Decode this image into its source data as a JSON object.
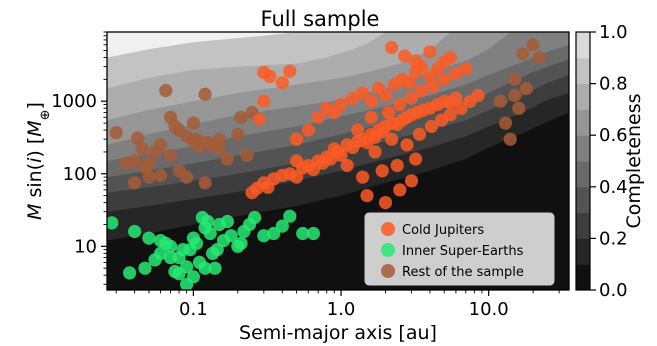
{
  "chart_data": {
    "type": "scatter",
    "title": "Full sample",
    "xlabel": "Semi-major axis [au]",
    "ylabel": "M sin(i) [M⊕]",
    "xscale": "log",
    "yscale": "log",
    "xlim": [
      0.026,
      35
    ],
    "ylim": [
      2.5,
      9000
    ],
    "xticks": [
      {
        "value": 0.1,
        "label": "0.1"
      },
      {
        "value": 1.0,
        "label": "1.0"
      },
      {
        "value": 10.0,
        "label": "10.0"
      }
    ],
    "yticks": [
      {
        "value": 10,
        "label": "10"
      },
      {
        "value": 100,
        "label": "100"
      },
      {
        "value": 1000,
        "label": "1000"
      }
    ],
    "legend": {
      "position": "lower-right",
      "entries": [
        "Cold Jupiters",
        "Inner Super-Earths",
        "Rest of the sample"
      ]
    },
    "colorbar": {
      "label": "Completeness",
      "ticks": [
        "0.0",
        "0.2",
        "0.4",
        "0.6",
        "0.8",
        "1.0"
      ],
      "levels": [
        0.0,
        0.1,
        0.2,
        0.3,
        0.4,
        0.5,
        0.6,
        0.7,
        0.8,
        0.9,
        1.0
      ]
    },
    "completeness_contours": [
      {
        "level": 0.9,
        "points": [
          [
            0.026,
            4000
          ],
          [
            0.05,
            5200
          ],
          [
            0.1,
            6500
          ],
          [
            0.3,
            8000
          ],
          [
            0.5,
            9000
          ]
        ]
      },
      {
        "level": 0.8,
        "points": [
          [
            0.026,
            1500
          ],
          [
            0.05,
            2100
          ],
          [
            0.1,
            2700
          ],
          [
            0.2,
            3000
          ],
          [
            0.5,
            3300
          ],
          [
            0.8,
            4000
          ],
          [
            1.2,
            5200
          ],
          [
            1.5,
            6200
          ],
          [
            2.0,
            9000
          ]
        ]
      },
      {
        "level": 0.7,
        "points": [
          [
            0.026,
            550
          ],
          [
            0.05,
            760
          ],
          [
            0.1,
            1000
          ],
          [
            0.2,
            1300
          ],
          [
            0.5,
            1700
          ],
          [
            1.0,
            2100
          ],
          [
            1.5,
            2500
          ],
          [
            2.5,
            3300
          ],
          [
            4,
            5000
          ],
          [
            5.5,
            9000
          ]
        ]
      },
      {
        "level": 0.6,
        "points": [
          [
            0.026,
            250
          ],
          [
            0.05,
            350
          ],
          [
            0.1,
            480
          ],
          [
            0.2,
            650
          ],
          [
            0.5,
            850
          ],
          [
            1.0,
            1050
          ],
          [
            2,
            1500
          ],
          [
            4,
            2500
          ],
          [
            7,
            3600
          ],
          [
            10,
            5200
          ],
          [
            14,
            9000
          ]
        ]
      },
      {
        "level": 0.5,
        "points": [
          [
            0.026,
            150
          ],
          [
            0.05,
            190
          ],
          [
            0.1,
            240
          ],
          [
            0.2,
            330
          ],
          [
            0.5,
            450
          ],
          [
            1.0,
            620
          ],
          [
            2,
            850
          ],
          [
            4,
            1200
          ],
          [
            7,
            1700
          ],
          [
            10,
            2300
          ],
          [
            17,
            3500
          ],
          [
            25,
            4800
          ],
          [
            35,
            6000
          ]
        ]
      },
      {
        "level": 0.4,
        "points": [
          [
            0.026,
            90
          ],
          [
            0.05,
            110
          ],
          [
            0.1,
            140
          ],
          [
            0.2,
            180
          ],
          [
            0.5,
            250
          ],
          [
            1.0,
            350
          ],
          [
            2,
            500
          ],
          [
            4,
            700
          ],
          [
            7,
            950
          ],
          [
            10,
            1300
          ],
          [
            17,
            2200
          ],
          [
            25,
            3000
          ],
          [
            35,
            3800
          ]
        ]
      },
      {
        "level": 0.3,
        "points": [
          [
            0.026,
            55
          ],
          [
            0.05,
            65
          ],
          [
            0.1,
            80
          ],
          [
            0.2,
            100
          ],
          [
            0.5,
            140
          ],
          [
            1.0,
            200
          ],
          [
            2,
            280
          ],
          [
            4,
            400
          ],
          [
            7,
            550
          ],
          [
            10,
            750
          ],
          [
            17,
            1200
          ],
          [
            25,
            1800
          ],
          [
            35,
            2300
          ]
        ]
      },
      {
        "level": 0.2,
        "points": [
          [
            0.026,
            30
          ],
          [
            0.05,
            36
          ],
          [
            0.1,
            45
          ],
          [
            0.2,
            56
          ],
          [
            0.5,
            80
          ],
          [
            1.0,
            110
          ],
          [
            2,
            160
          ],
          [
            4,
            230
          ],
          [
            7,
            330
          ],
          [
            10,
            450
          ],
          [
            17,
            700
          ],
          [
            25,
            1050
          ],
          [
            35,
            1300
          ]
        ]
      },
      {
        "level": 0.1,
        "points": [
          [
            0.026,
            12
          ],
          [
            0.05,
            15
          ],
          [
            0.1,
            20
          ],
          [
            0.2,
            26
          ],
          [
            0.5,
            36
          ],
          [
            1.0,
            50
          ],
          [
            2,
            75
          ],
          [
            4,
            110
          ],
          [
            7,
            160
          ],
          [
            10,
            230
          ],
          [
            17,
            360
          ],
          [
            25,
            520
          ],
          [
            35,
            700
          ]
        ]
      }
    ],
    "series": [
      {
        "name": "Cold Jupiters",
        "color": "#fc5a24",
        "points": [
          [
            0.25,
            55
          ],
          [
            0.27,
            63
          ],
          [
            0.3,
            75
          ],
          [
            0.32,
            65
          ],
          [
            0.35,
            85
          ],
          [
            0.4,
            95
          ],
          [
            0.45,
            100
          ],
          [
            0.5,
            90
          ],
          [
            0.55,
            120
          ],
          [
            0.6,
            130
          ],
          [
            0.65,
            115
          ],
          [
            0.7,
            150
          ],
          [
            0.75,
            140
          ],
          [
            0.8,
            170
          ],
          [
            0.85,
            160
          ],
          [
            0.9,
            220
          ],
          [
            0.95,
            200
          ],
          [
            1.0,
            180
          ],
          [
            1.1,
            250
          ],
          [
            1.2,
            230
          ],
          [
            1.3,
            280
          ],
          [
            1.4,
            300
          ],
          [
            1.5,
            270
          ],
          [
            1.6,
            350
          ],
          [
            1.7,
            320
          ],
          [
            1.8,
            400
          ],
          [
            1.9,
            380
          ],
          [
            2.0,
            450
          ],
          [
            2.2,
            500
          ],
          [
            2.4,
            480
          ],
          [
            2.6,
            550
          ],
          [
            2.8,
            600
          ],
          [
            3.0,
            650
          ],
          [
            3.3,
            700
          ],
          [
            3.6,
            750
          ],
          [
            4.0,
            800
          ],
          [
            4.5,
            900
          ],
          [
            5.0,
            1000
          ],
          [
            5.5,
            950
          ],
          [
            6.0,
            1100
          ],
          [
            0.5,
            300
          ],
          [
            0.6,
            400
          ],
          [
            0.7,
            600
          ],
          [
            0.8,
            800
          ],
          [
            0.9,
            700
          ],
          [
            1.0,
            900
          ],
          [
            1.2,
            1100
          ],
          [
            1.4,
            1300
          ],
          [
            1.6,
            1000
          ],
          [
            1.8,
            1500
          ],
          [
            2.0,
            1200
          ],
          [
            2.3,
            1700
          ],
          [
            2.6,
            2000
          ],
          [
            2.9,
            1800
          ],
          [
            3.2,
            2500
          ],
          [
            3.5,
            3000
          ],
          [
            4.0,
            2200
          ],
          [
            4.5,
            2800
          ],
          [
            5.0,
            3500
          ],
          [
            5.5,
            4000
          ],
          [
            0.3,
            2500
          ],
          [
            0.33,
            2200
          ],
          [
            0.4,
            1800
          ],
          [
            0.45,
            2600
          ],
          [
            0.3,
            1000
          ],
          [
            0.28,
            560
          ],
          [
            0.5,
            150
          ],
          [
            1.1,
            130
          ],
          [
            1.5,
            50
          ],
          [
            2.0,
            40
          ],
          [
            2.5,
            60
          ],
          [
            3.0,
            80
          ],
          [
            1.3,
            400
          ],
          [
            1.6,
            600
          ],
          [
            2.1,
            700
          ],
          [
            2.5,
            900
          ],
          [
            3.0,
            1100
          ],
          [
            3.5,
            1400
          ],
          [
            4.2,
            1600
          ],
          [
            5.0,
            2000
          ],
          [
            6.0,
            2400
          ],
          [
            7.0,
            2800
          ],
          [
            2.2,
            5500
          ],
          [
            2.7,
            4200
          ],
          [
            3.2,
            3600
          ],
          [
            4.0,
            4800
          ],
          [
            1.7,
            200
          ],
          [
            2.2,
            300
          ],
          [
            2.8,
            250
          ],
          [
            3.4,
            350
          ],
          [
            4.1,
            450
          ],
          [
            4.8,
            550
          ],
          [
            5.5,
            650
          ],
          [
            6.5,
            800
          ],
          [
            7.5,
            1000
          ],
          [
            8.5,
            1200
          ],
          [
            1.4,
            90
          ],
          [
            1.9,
            110
          ],
          [
            2.4,
            130
          ],
          [
            3.2,
            160
          ]
        ]
      },
      {
        "name": "Inner Super-Earths",
        "color": "#26ea74",
        "points": [
          [
            0.028,
            21
          ],
          [
            0.037,
            4.3
          ],
          [
            0.04,
            16
          ],
          [
            0.047,
            5.0
          ],
          [
            0.05,
            13
          ],
          [
            0.055,
            6.5
          ],
          [
            0.06,
            8
          ],
          [
            0.065,
            11
          ],
          [
            0.07,
            10
          ],
          [
            0.075,
            4.5
          ],
          [
            0.08,
            7
          ],
          [
            0.085,
            9
          ],
          [
            0.09,
            3.0
          ],
          [
            0.09,
            5.2
          ],
          [
            0.1,
            13
          ],
          [
            0.105,
            11
          ],
          [
            0.11,
            6
          ],
          [
            0.12,
            18
          ],
          [
            0.125,
            22
          ],
          [
            0.13,
            15
          ],
          [
            0.135,
            8
          ],
          [
            0.14,
            5
          ],
          [
            0.15,
            20
          ],
          [
            0.16,
            12
          ],
          [
            0.18,
            14
          ],
          [
            0.2,
            10
          ],
          [
            0.22,
            16
          ],
          [
            0.24,
            20
          ],
          [
            0.26,
            25
          ],
          [
            0.3,
            14
          ],
          [
            0.35,
            15
          ],
          [
            0.4,
            19
          ],
          [
            0.45,
            26
          ],
          [
            0.55,
            15
          ],
          [
            0.65,
            15
          ],
          [
            0.095,
            9
          ],
          [
            0.115,
            25
          ],
          [
            0.145,
            9
          ],
          [
            0.17,
            22
          ],
          [
            0.21,
            11
          ],
          [
            0.06,
            12
          ],
          [
            0.07,
            7
          ],
          [
            0.1,
            3.8
          ],
          [
            0.12,
            5
          ],
          [
            0.08,
            4.2
          ]
        ]
      },
      {
        "name": "Rest of the sample",
        "color": "#a65a37",
        "points": [
          [
            0.03,
            370
          ],
          [
            0.04,
            150
          ],
          [
            0.042,
            310
          ],
          [
            0.045,
            220
          ],
          [
            0.048,
            120
          ],
          [
            0.05,
            140
          ],
          [
            0.055,
            200
          ],
          [
            0.06,
            95
          ],
          [
            0.065,
            1400
          ],
          [
            0.07,
            600
          ],
          [
            0.075,
            450
          ],
          [
            0.08,
            400
          ],
          [
            0.09,
            330
          ],
          [
            0.1,
            280
          ],
          [
            0.105,
            300
          ],
          [
            0.11,
            240
          ],
          [
            0.12,
            1250
          ],
          [
            0.125,
            270
          ],
          [
            0.13,
            250
          ],
          [
            0.15,
            220
          ],
          [
            0.17,
            160
          ],
          [
            0.2,
            350
          ],
          [
            0.21,
            600
          ],
          [
            0.12,
            75
          ],
          [
            0.09,
            90
          ],
          [
            0.07,
            180
          ],
          [
            0.06,
            250
          ],
          [
            0.05,
            90
          ],
          [
            0.04,
            75
          ],
          [
            0.035,
            140
          ],
          [
            0.15,
            300
          ],
          [
            0.1,
            500
          ],
          [
            0.25,
            700
          ],
          [
            0.08,
            110
          ],
          [
            0.23,
            180
          ],
          [
            15,
            2000
          ],
          [
            17,
            4500
          ],
          [
            22,
            4000
          ],
          [
            15,
            1200
          ],
          [
            16,
            800
          ],
          [
            18,
            1500
          ],
          [
            12,
            1000
          ],
          [
            20,
            6000
          ],
          [
            13,
            500
          ],
          [
            14,
            300
          ]
        ]
      }
    ]
  }
}
